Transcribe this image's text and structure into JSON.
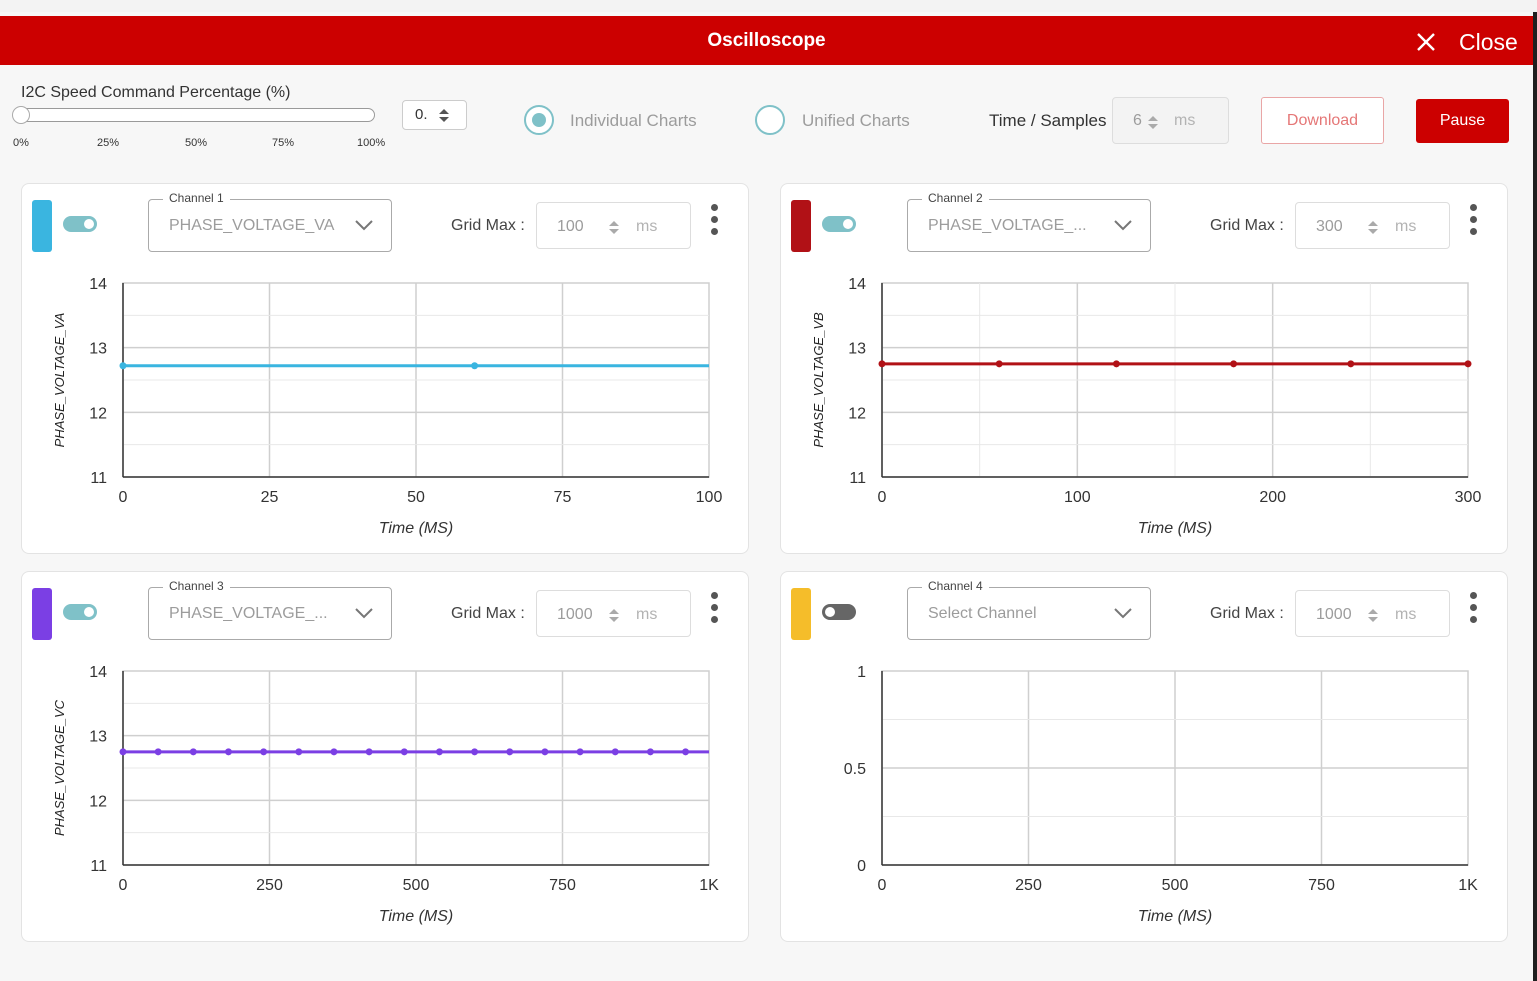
{
  "modal": {
    "title": "Oscilloscope",
    "close_label": "Close"
  },
  "controls": {
    "speed_label": "I2C Speed Command Percentage (%)",
    "slider_percent": 0,
    "slider_ticks": [
      "0%",
      "25%",
      "50%",
      "75%",
      "100%"
    ],
    "speed_value": "0.",
    "radio_individual": "Individual Charts",
    "radio_unified": "Unified Charts",
    "selected_mode": "Individual Charts",
    "time_samples_label": "Time / Samples",
    "time_samples_value": "6",
    "time_samples_unit": "ms",
    "download_label": "Download",
    "pause_label": "Pause"
  },
  "colors": {
    "brand": "#cc0000",
    "toggle_on": "#7fc1c8"
  },
  "panels": [
    {
      "channel_label": "Channel 1",
      "selected": "PHASE_VOLTAGE_VA",
      "color": "#3ab5e0",
      "enabled": true,
      "grid_max_label": "Grid Max :",
      "grid_max": "100",
      "grid_unit": "ms"
    },
    {
      "channel_label": "Channel 2",
      "selected": "PHASE_VOLTAGE_...",
      "color": "#b11116",
      "enabled": true,
      "grid_max_label": "Grid Max :",
      "grid_max": "300",
      "grid_unit": "ms"
    },
    {
      "channel_label": "Channel 3",
      "selected": "PHASE_VOLTAGE_...",
      "color": "#7b3fe4",
      "enabled": true,
      "grid_max_label": "Grid Max :",
      "grid_max": "1000",
      "grid_unit": "ms"
    },
    {
      "channel_label": "Channel 4",
      "selected": "Select Channel",
      "color": "#f5bd2a",
      "enabled": false,
      "grid_max_label": "Grid Max :",
      "grid_max": "1000",
      "grid_unit": "ms"
    }
  ],
  "chart_data": [
    {
      "type": "line",
      "xlabel": "Time (MS)",
      "ylabel": "PHASE_VOLTAGE_VA",
      "xlim": [
        0,
        100
      ],
      "ylim": [
        11,
        14
      ],
      "xticks": [
        "0",
        "25",
        "50",
        "75",
        "100"
      ],
      "yticks": [
        "11",
        "12",
        "13",
        "14"
      ],
      "grid": true,
      "series": [
        {
          "x": [
            0,
            60,
            100
          ],
          "y": [
            12.72,
            12.72,
            12.72
          ],
          "markers": [
            0,
            60
          ]
        }
      ]
    },
    {
      "type": "line",
      "xlabel": "Time (MS)",
      "ylabel": "PHASE_VOLTAGE_VB",
      "xlim": [
        0,
        300
      ],
      "ylim": [
        11,
        14
      ],
      "xticks": [
        "0",
        "100",
        "200",
        "300"
      ],
      "yticks": [
        "11",
        "12",
        "13",
        "14"
      ],
      "grid": true,
      "series": [
        {
          "x": [
            0,
            60,
            120,
            180,
            240,
            300
          ],
          "y": [
            12.75,
            12.75,
            12.75,
            12.75,
            12.75,
            12.75
          ],
          "markers": [
            0,
            60,
            120,
            180,
            240,
            300
          ]
        }
      ]
    },
    {
      "type": "line",
      "xlabel": "Time (MS)",
      "ylabel": "PHASE_VOLTAGE_VC",
      "xlim": [
        0,
        1000
      ],
      "ylim": [
        11,
        14
      ],
      "xticks": [
        "0",
        "250",
        "500",
        "750",
        "1K"
      ],
      "yticks": [
        "11",
        "12",
        "13",
        "14"
      ],
      "grid": true,
      "series": [
        {
          "x": [
            0,
            60,
            120,
            180,
            240,
            300,
            360,
            420,
            480,
            540,
            600,
            660,
            720,
            780,
            840,
            900,
            960,
            1000
          ],
          "y": [
            12.75,
            12.75,
            12.75,
            12.75,
            12.75,
            12.75,
            12.75,
            12.75,
            12.75,
            12.75,
            12.75,
            12.75,
            12.75,
            12.75,
            12.75,
            12.75,
            12.75,
            12.75
          ],
          "markers": [
            0,
            60,
            120,
            180,
            240,
            300,
            360,
            420,
            480,
            540,
            600,
            660,
            720,
            780,
            840,
            900,
            960
          ]
        }
      ]
    },
    {
      "type": "line",
      "xlabel": "Time (MS)",
      "ylabel": "",
      "xlim": [
        0,
        1000
      ],
      "ylim": [
        0,
        1
      ],
      "xticks": [
        "0",
        "250",
        "500",
        "750",
        "1K"
      ],
      "yticks": [
        "0",
        "0.5",
        "1"
      ],
      "grid": true,
      "series": []
    }
  ]
}
